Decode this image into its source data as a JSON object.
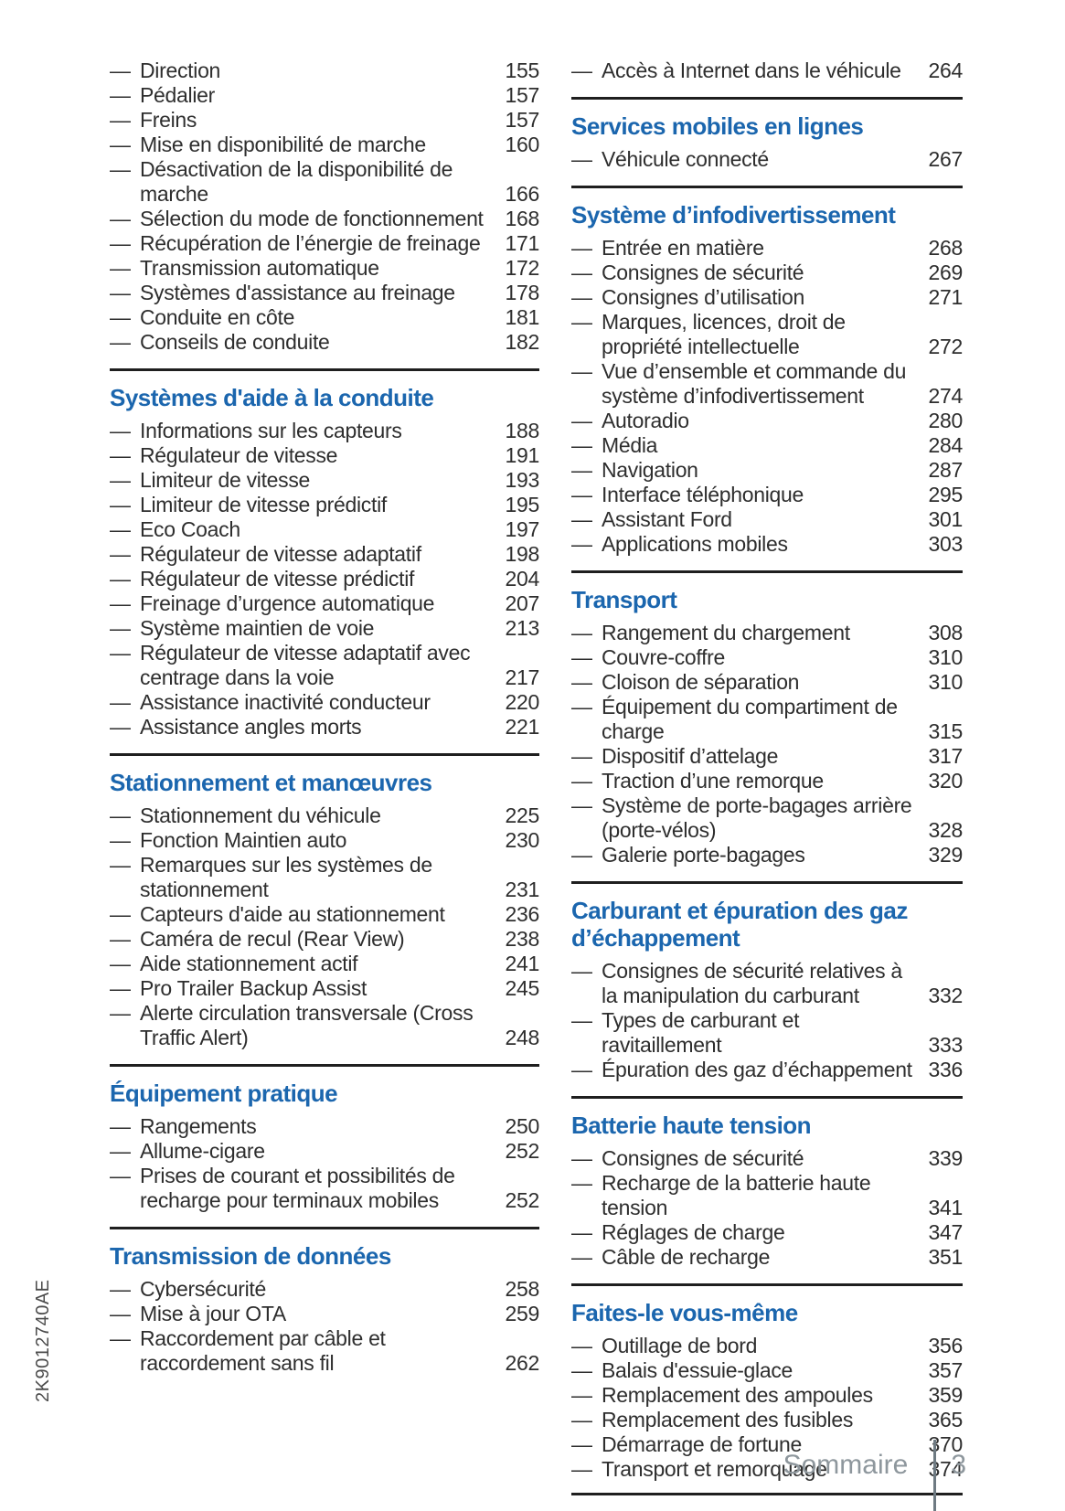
{
  "page": {
    "side_code": "2K9012740AE",
    "footer_label": "Sommaire",
    "footer_page": "3"
  },
  "colors": {
    "accent": "#1b66ae",
    "text": "#2e2e2e",
    "rule": "#1f1f1f",
    "footer_gray": "#8e979d",
    "footer_bar": "#6e7a82",
    "side_code": "#4c4c4c"
  },
  "toc": {
    "columns": [
      {
        "sections": [
          {
            "title": null,
            "entries": [
              {
                "label": "Direction",
                "page": "155"
              },
              {
                "label": "Pédalier",
                "page": "157"
              },
              {
                "label": "Freins",
                "page": "157"
              },
              {
                "label": "Mise en disponibilité de marche",
                "page": "160"
              },
              {
                "label": "Désactivation de la disponibilité de marche",
                "page": "166"
              },
              {
                "label": "Sélection du mode de fonctionnement",
                "page": "168"
              },
              {
                "label": "Récupération de l’énergie de freinage",
                "page": "171"
              },
              {
                "label": "Transmission automatique",
                "page": "172"
              },
              {
                "label": "Systèmes d'assistance au freinage",
                "page": "178"
              },
              {
                "label": "Conduite en côte",
                "page": "181"
              },
              {
                "label": "Conseils de conduite",
                "page": "182"
              }
            ]
          },
          {
            "title": "Systèmes d'aide à la conduite",
            "entries": [
              {
                "label": "Informations sur les capteurs",
                "page": "188"
              },
              {
                "label": "Régulateur de vitesse",
                "page": "191"
              },
              {
                "label": "Limiteur de vitesse",
                "page": "193"
              },
              {
                "label": "Limiteur de vitesse prédictif",
                "page": "195"
              },
              {
                "label": "Eco Coach",
                "page": "197"
              },
              {
                "label": "Régulateur de vitesse adaptatif",
                "page": "198"
              },
              {
                "label": "Régulateur de vitesse prédictif",
                "page": "204"
              },
              {
                "label": "Freinage d’urgence automatique",
                "page": "207"
              },
              {
                "label": "Système maintien de voie",
                "page": "213"
              },
              {
                "label": "Régulateur de vitesse adaptatif avec centrage dans la voie",
                "page": "217"
              },
              {
                "label": "Assistance inactivité conducteur",
                "page": "220"
              },
              {
                "label": "Assistance angles morts",
                "page": "221"
              }
            ]
          },
          {
            "title": "Stationnement et manœuvres",
            "entries": [
              {
                "label": "Stationnement du véhicule",
                "page": "225"
              },
              {
                "label": "Fonction Maintien auto",
                "page": "230"
              },
              {
                "label": "Remarques sur les systèmes de stationnement",
                "page": "231"
              },
              {
                "label": "Capteurs d'aide au stationnement",
                "page": "236"
              },
              {
                "label": "Caméra de recul (Rear View)",
                "page": "238"
              },
              {
                "label": "Aide stationnement actif",
                "page": "241"
              },
              {
                "label": "Pro Trailer Backup Assist",
                "page": "245"
              },
              {
                "label": "Alerte circulation transversale (Cross Traffic Alert)",
                "page": "248"
              }
            ]
          },
          {
            "title": "Équipement pratique",
            "entries": [
              {
                "label": "Rangements",
                "page": "250"
              },
              {
                "label": "Allume-cigare",
                "page": "252"
              },
              {
                "label": "Prises de courant et possibilités de recharge pour terminaux mobiles",
                "page": "252"
              }
            ]
          },
          {
            "title": "Transmission de données",
            "entries": [
              {
                "label": "Cybersécurité",
                "page": "258"
              },
              {
                "label": "Mise à jour OTA",
                "page": "259"
              },
              {
                "label": "Raccordement par câble et raccordement sans fil",
                "page": "262"
              }
            ]
          }
        ]
      },
      {
        "sections": [
          {
            "title": null,
            "entries": [
              {
                "label": "Accès à Internet dans le véhicule",
                "page": "264"
              }
            ]
          },
          {
            "title": "Services mobiles en lignes",
            "entries": [
              {
                "label": "Véhicule connecté",
                "page": "267"
              }
            ]
          },
          {
            "title": "Système d’infodivertissement",
            "entries": [
              {
                "label": "Entrée en matière",
                "page": "268"
              },
              {
                "label": "Consignes de sécurité",
                "page": "269"
              },
              {
                "label": "Consignes d’utilisation",
                "page": "271"
              },
              {
                "label": "Marques, licences, droit de propriété intellectuelle",
                "page": "272"
              },
              {
                "label": "Vue d’ensemble et commande du système d’infodivertissement",
                "page": "274"
              },
              {
                "label": "Autoradio",
                "page": "280"
              },
              {
                "label": "Média",
                "page": "284"
              },
              {
                "label": "Navigation",
                "page": "287"
              },
              {
                "label": "Interface téléphonique",
                "page": "295"
              },
              {
                "label": "Assistant Ford",
                "page": "301"
              },
              {
                "label": "Applications mobiles",
                "page": "303"
              }
            ]
          },
          {
            "title": "Transport",
            "entries": [
              {
                "label": "Rangement du chargement",
                "page": "308"
              },
              {
                "label": "Couvre-coffre",
                "page": "310"
              },
              {
                "label": "Cloison de séparation",
                "page": "310"
              },
              {
                "label": "Équipement du compartiment de charge",
                "page": "315"
              },
              {
                "label": "Dispositif d’attelage",
                "page": "317"
              },
              {
                "label": "Traction d’une remorque",
                "page": "320"
              },
              {
                "label": "Système de porte-bagages arrière (porte-vélos)",
                "page": "328"
              },
              {
                "label": "Galerie porte-bagages",
                "page": "329"
              }
            ]
          },
          {
            "title": "Carburant et épuration des gaz d’échappement",
            "entries": [
              {
                "label": "Consignes de sécurité relatives à la manipulation du carburant",
                "page": "332"
              },
              {
                "label": "Types de carburant et ravitaillement",
                "page": "333"
              },
              {
                "label": "Épuration des gaz d’échappement",
                "page": "336"
              }
            ]
          },
          {
            "title": "Batterie haute tension",
            "entries": [
              {
                "label": "Consignes de sécurité",
                "page": "339"
              },
              {
                "label": "Recharge de la batterie haute tension",
                "page": "341"
              },
              {
                "label": "Réglages de charge",
                "page": "347"
              },
              {
                "label": "Câble de recharge",
                "page": "351"
              }
            ]
          },
          {
            "title": "Faites-le vous-même",
            "rule_bottom": true,
            "entries": [
              {
                "label": "Outillage de bord",
                "page": "356"
              },
              {
                "label": "Balais d'essuie-glace",
                "page": "357"
              },
              {
                "label": "Remplacement des ampoules",
                "page": "359"
              },
              {
                "label": "Remplacement des fusibles",
                "page": "365"
              },
              {
                "label": "Démarrage de fortune",
                "page": "370"
              },
              {
                "label": "Transport et remorquage",
                "page": "374"
              }
            ]
          }
        ]
      }
    ]
  }
}
